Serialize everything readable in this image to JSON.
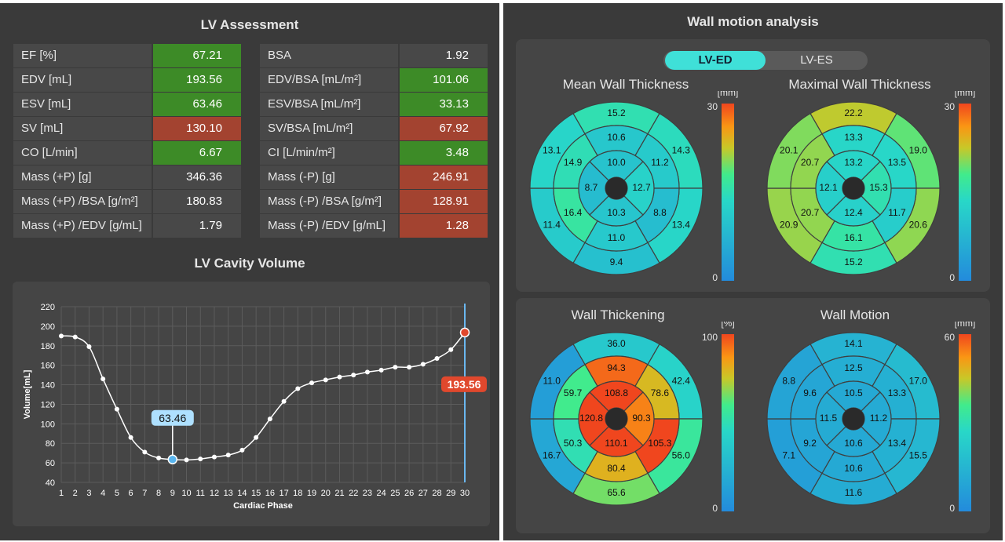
{
  "lv_assessment": {
    "title": "LV Assessment",
    "left_rows": [
      {
        "label": "EF  [%]",
        "value": "67.21",
        "status": "green"
      },
      {
        "label": "EDV  [mL]",
        "value": "193.56",
        "status": "green"
      },
      {
        "label": "ESV  [mL]",
        "value": "63.46",
        "status": "green"
      },
      {
        "label": "SV  [mL]",
        "value": "130.10",
        "status": "red"
      },
      {
        "label": "CO  [L/min]",
        "value": "6.67",
        "status": "green"
      },
      {
        "label": "Mass (+P)  [g]",
        "value": "346.36",
        "status": "none"
      },
      {
        "label": "Mass (+P) /BSA [g/m²]",
        "value": "180.83",
        "status": "none"
      },
      {
        "label": "Mass (+P) /EDV [g/mL]",
        "value": "1.79",
        "status": "none"
      }
    ],
    "right_rows": [
      {
        "label": "BSA",
        "value": "1.92",
        "status": "none"
      },
      {
        "label": "EDV/BSA  [mL/m²]",
        "value": "101.06",
        "status": "green"
      },
      {
        "label": "ESV/BSA  [mL/m²]",
        "value": "33.13",
        "status": "green"
      },
      {
        "label": "SV/BSA  [mL/m²]",
        "value": "67.92",
        "status": "red"
      },
      {
        "label": "CI  [L/min/m²]",
        "value": "3.48",
        "status": "green"
      },
      {
        "label": "Mass (-P)  [g]",
        "value": "246.91",
        "status": "red"
      },
      {
        "label": "Mass (-P) /BSA [g/m²]",
        "value": "128.91",
        "status": "red"
      },
      {
        "label": "Mass (-P) /EDV [g/mL]",
        "value": "1.28",
        "status": "red"
      }
    ]
  },
  "volume": {
    "title": "LV Cavity Volume",
    "chart_data": {
      "type": "line",
      "xlabel": "Cardiac Phase",
      "ylabel": "Volume[mL]",
      "ylim": [
        40,
        220
      ],
      "yticks": [
        40,
        60,
        80,
        100,
        120,
        140,
        160,
        180,
        200,
        220
      ],
      "x": [
        1,
        2,
        3,
        4,
        5,
        6,
        7,
        8,
        9,
        10,
        11,
        12,
        13,
        14,
        15,
        16,
        17,
        18,
        19,
        20,
        21,
        22,
        23,
        24,
        25,
        26,
        27,
        28,
        29,
        30
      ],
      "values": [
        190,
        189,
        179,
        146,
        115,
        86,
        71,
        65,
        63.46,
        63,
        64,
        66,
        68,
        73,
        86,
        105,
        123,
        136,
        142,
        145,
        148,
        150,
        153,
        155,
        158,
        158,
        161,
        167,
        176,
        193.56
      ],
      "min_marker": {
        "phase": 9,
        "label": "63.46"
      },
      "max_marker": {
        "phase": 30,
        "label": "193.56"
      },
      "grid": true
    }
  },
  "wall": {
    "title": "Wall motion analysis",
    "toggle": [
      "LV-ED",
      "LV-ES"
    ],
    "active": "LV-ED",
    "bullseyes": [
      {
        "title": "Mean Wall Thickness",
        "unit": "[mm]",
        "max": "30",
        "min": "0",
        "basal": [
          "15.2",
          "14.3",
          "13.4",
          "9.4",
          "11.4",
          "13.1"
        ],
        "mid": [
          "10.6",
          "11.2",
          "8.8",
          "11.0",
          "16.4",
          "14.9"
        ],
        "apical": [
          "10.0",
          "12.7",
          "10.3",
          "8.7"
        ]
      },
      {
        "title": "Maximal Wall Thickness",
        "unit": "[mm]",
        "max": "30",
        "min": "0",
        "basal": [
          "22.2",
          "19.0",
          "20.6",
          "15.2",
          "20.9",
          "20.1"
        ],
        "mid": [
          "13.3",
          "13.5",
          "11.7",
          "16.1",
          "20.7",
          "20.7"
        ],
        "apical": [
          "13.2",
          "15.3",
          "12.4",
          "12.1"
        ]
      },
      {
        "title": "Wall Thickening",
        "unit": "[%]",
        "max": "100",
        "min": "0",
        "basal": [
          "36.0",
          "42.4",
          "56.0",
          "65.6",
          "16.7",
          "11.0"
        ],
        "mid": [
          "94.3",
          "78.6",
          "105.3",
          "80.4",
          "50.3",
          "59.7"
        ],
        "apical": [
          "108.8",
          "90.3",
          "110.1",
          "120.8"
        ]
      },
      {
        "title": "Wall Motion",
        "unit": "[mm]",
        "max": "60",
        "min": "0",
        "basal": [
          "14.1",
          "17.0",
          "15.5",
          "11.6",
          "7.1",
          "8.8"
        ],
        "mid": [
          "12.5",
          "13.3",
          "13.4",
          "10.6",
          "9.2",
          "9.6"
        ],
        "apical": [
          "10.5",
          "11.2",
          "10.6",
          "11.5"
        ]
      }
    ]
  }
}
